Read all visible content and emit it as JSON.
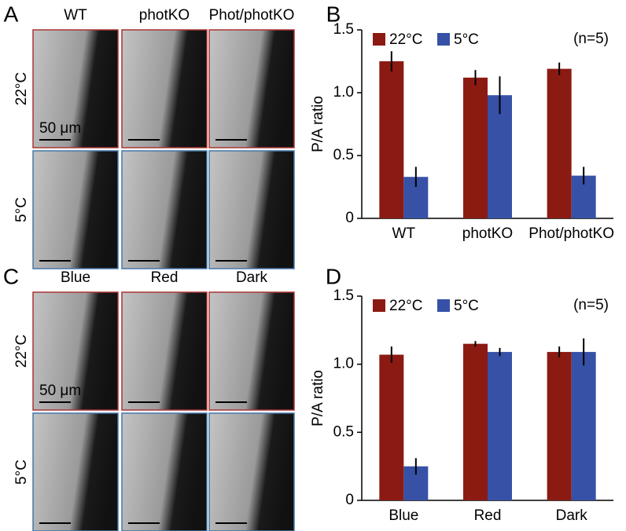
{
  "panel_labels": [
    "A",
    "B",
    "C",
    "D"
  ],
  "image_panels": [
    {
      "columns": [
        "WT",
        "photKO",
        "Phot/photKO"
      ],
      "rows": [
        "22°C",
        "5°C"
      ],
      "scale_bar": "50 μm"
    },
    {
      "columns": [
        "Blue",
        "Red",
        "Dark"
      ],
      "rows": [
        "22°C",
        "5°C"
      ],
      "scale_bar": "50 μm"
    }
  ],
  "chart_data": [
    {
      "type": "bar",
      "y_label": "P/A ratio",
      "annotation": "(n=5)",
      "legend": "upper left",
      "categories": [
        "WT",
        "photKO",
        "Phot/photKO"
      ],
      "series": [
        {
          "name": "22°C",
          "color": "#8b1a12",
          "values": [
            1.25,
            1.12,
            1.19
          ],
          "errors": [
            0.08,
            0.06,
            0.05
          ]
        },
        {
          "name": "5°C",
          "color": "#3651a6",
          "values": [
            0.33,
            0.98,
            0.34
          ],
          "errors": [
            0.08,
            0.15,
            0.07
          ]
        }
      ],
      "ylim": [
        0,
        1.5
      ],
      "yticks": [
        0,
        0.5,
        {
          "value": 1,
          "label": "1.0"
        },
        1.5
      ]
    },
    {
      "type": "bar",
      "y_label": "P/A ratio",
      "annotation": "(n=5)",
      "legend": "upper left",
      "categories": [
        "Blue",
        "Red",
        "Dark"
      ],
      "series": [
        {
          "name": "22°C",
          "color": "#8b1a12",
          "values": [
            1.07,
            1.15,
            1.09
          ],
          "errors": [
            0.06,
            0.02,
            0.04
          ]
        },
        {
          "name": "5°C",
          "color": "#3651a6",
          "values": [
            0.25,
            1.09,
            1.09
          ],
          "errors": [
            0.06,
            0.03,
            0.1
          ]
        }
      ],
      "ylim": [
        0,
        1.5
      ],
      "yticks": [
        0,
        0.5,
        {
          "value": 1,
          "label": "1.0"
        },
        1.5
      ]
    }
  ]
}
